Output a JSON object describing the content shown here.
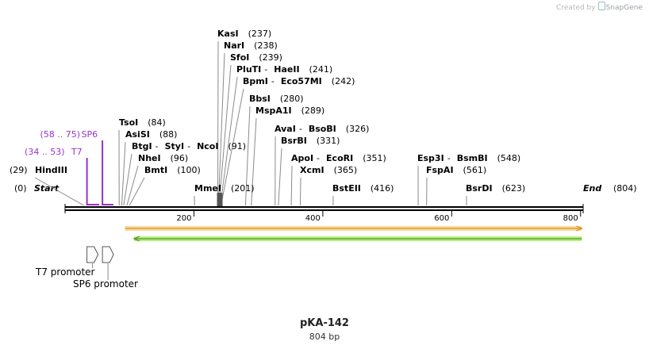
{
  "app": {
    "credit": "Created by",
    "brand": "SnapGene"
  },
  "plasmid": {
    "name": "pKA-142",
    "length_label": "804 bp",
    "length": 804
  },
  "origin_labels": {
    "start": {
      "label": "Start",
      "position": "(0)"
    },
    "end": {
      "label": "End",
      "position": "(804)"
    }
  },
  "ruler_ticks": [
    {
      "label": "200",
      "bp": 200
    },
    {
      "label": "400",
      "bp": 400
    },
    {
      "label": "600",
      "bp": 600
    },
    {
      "label": "800",
      "bp": 800
    }
  ],
  "primers": [
    {
      "name": "SP6",
      "range": "(58 .. 75)",
      "start": 58,
      "end": 75,
      "color": "#9932cc"
    },
    {
      "name": "T7",
      "range": "(34 .. 53)",
      "start": 34,
      "end": 53,
      "color": "#9932cc"
    }
  ],
  "enzymes": [
    {
      "parts": [
        "KasI"
      ],
      "position": "(237)",
      "bp": 237
    },
    {
      "parts": [
        "NarI"
      ],
      "position": "(238)",
      "bp": 238
    },
    {
      "parts": [
        "SfoI"
      ],
      "position": "(239)",
      "bp": 239
    },
    {
      "parts": [
        "PluTI",
        "HaeII"
      ],
      "position": "(241)",
      "bp": 241
    },
    {
      "parts": [
        "BpmI",
        "Eco57MI"
      ],
      "position": "(242)",
      "bp": 242
    },
    {
      "parts": [
        "BbsI"
      ],
      "position": "(280)",
      "bp": 280
    },
    {
      "parts": [
        "MspA1I"
      ],
      "position": "(289)",
      "bp": 289
    },
    {
      "parts": [
        "AvaI",
        "BsoBI"
      ],
      "position": "(326)",
      "bp": 326
    },
    {
      "parts": [
        "BsrBI"
      ],
      "position": "(331)",
      "bp": 331
    },
    {
      "parts": [
        "ApoI",
        "EcoRI"
      ],
      "position": "(351)",
      "bp": 351
    },
    {
      "parts": [
        "XcmI"
      ],
      "position": "(365)",
      "bp": 365
    },
    {
      "parts": [
        "BstEII"
      ],
      "position": "(416)",
      "bp": 416
    },
    {
      "parts": [
        "Esp3I",
        "BsmBI"
      ],
      "position": "(548)",
      "bp": 548
    },
    {
      "parts": [
        "FspAI"
      ],
      "position": "(561)",
      "bp": 561
    },
    {
      "parts": [
        "BsrDI"
      ],
      "position": "(623)",
      "bp": 623
    },
    {
      "parts": [
        "TsoI"
      ],
      "position": "(84)",
      "bp": 84
    },
    {
      "parts": [
        "AsiSI"
      ],
      "position": "(88)",
      "bp": 88
    },
    {
      "parts": [
        "BtgI",
        "StyI",
        "NcoI"
      ],
      "position": "(91)",
      "bp": 91
    },
    {
      "parts": [
        "NheI"
      ],
      "position": "(96)",
      "bp": 96
    },
    {
      "parts": [
        "BmtI"
      ],
      "position": "(100)",
      "bp": 100
    },
    {
      "parts": [
        "HindIII"
      ],
      "position": "(29)",
      "bp": 29
    },
    {
      "parts": [
        "MmeI"
      ],
      "position": "(201)",
      "bp": 201
    }
  ],
  "features": [
    {
      "name": "orange-feature",
      "start": 93,
      "end": 802,
      "direction": "forward",
      "fill": "#ffd89a",
      "stroke": "#c8962a"
    },
    {
      "name": "green-feature",
      "start": 107,
      "end": 802,
      "direction": "reverse",
      "fill": "#b6ef80",
      "stroke": "#4f9a1f"
    }
  ],
  "promoters": [
    {
      "name": "T7 promoter",
      "bp": 34
    },
    {
      "name": "SP6 promoter",
      "bp": 58
    }
  ]
}
